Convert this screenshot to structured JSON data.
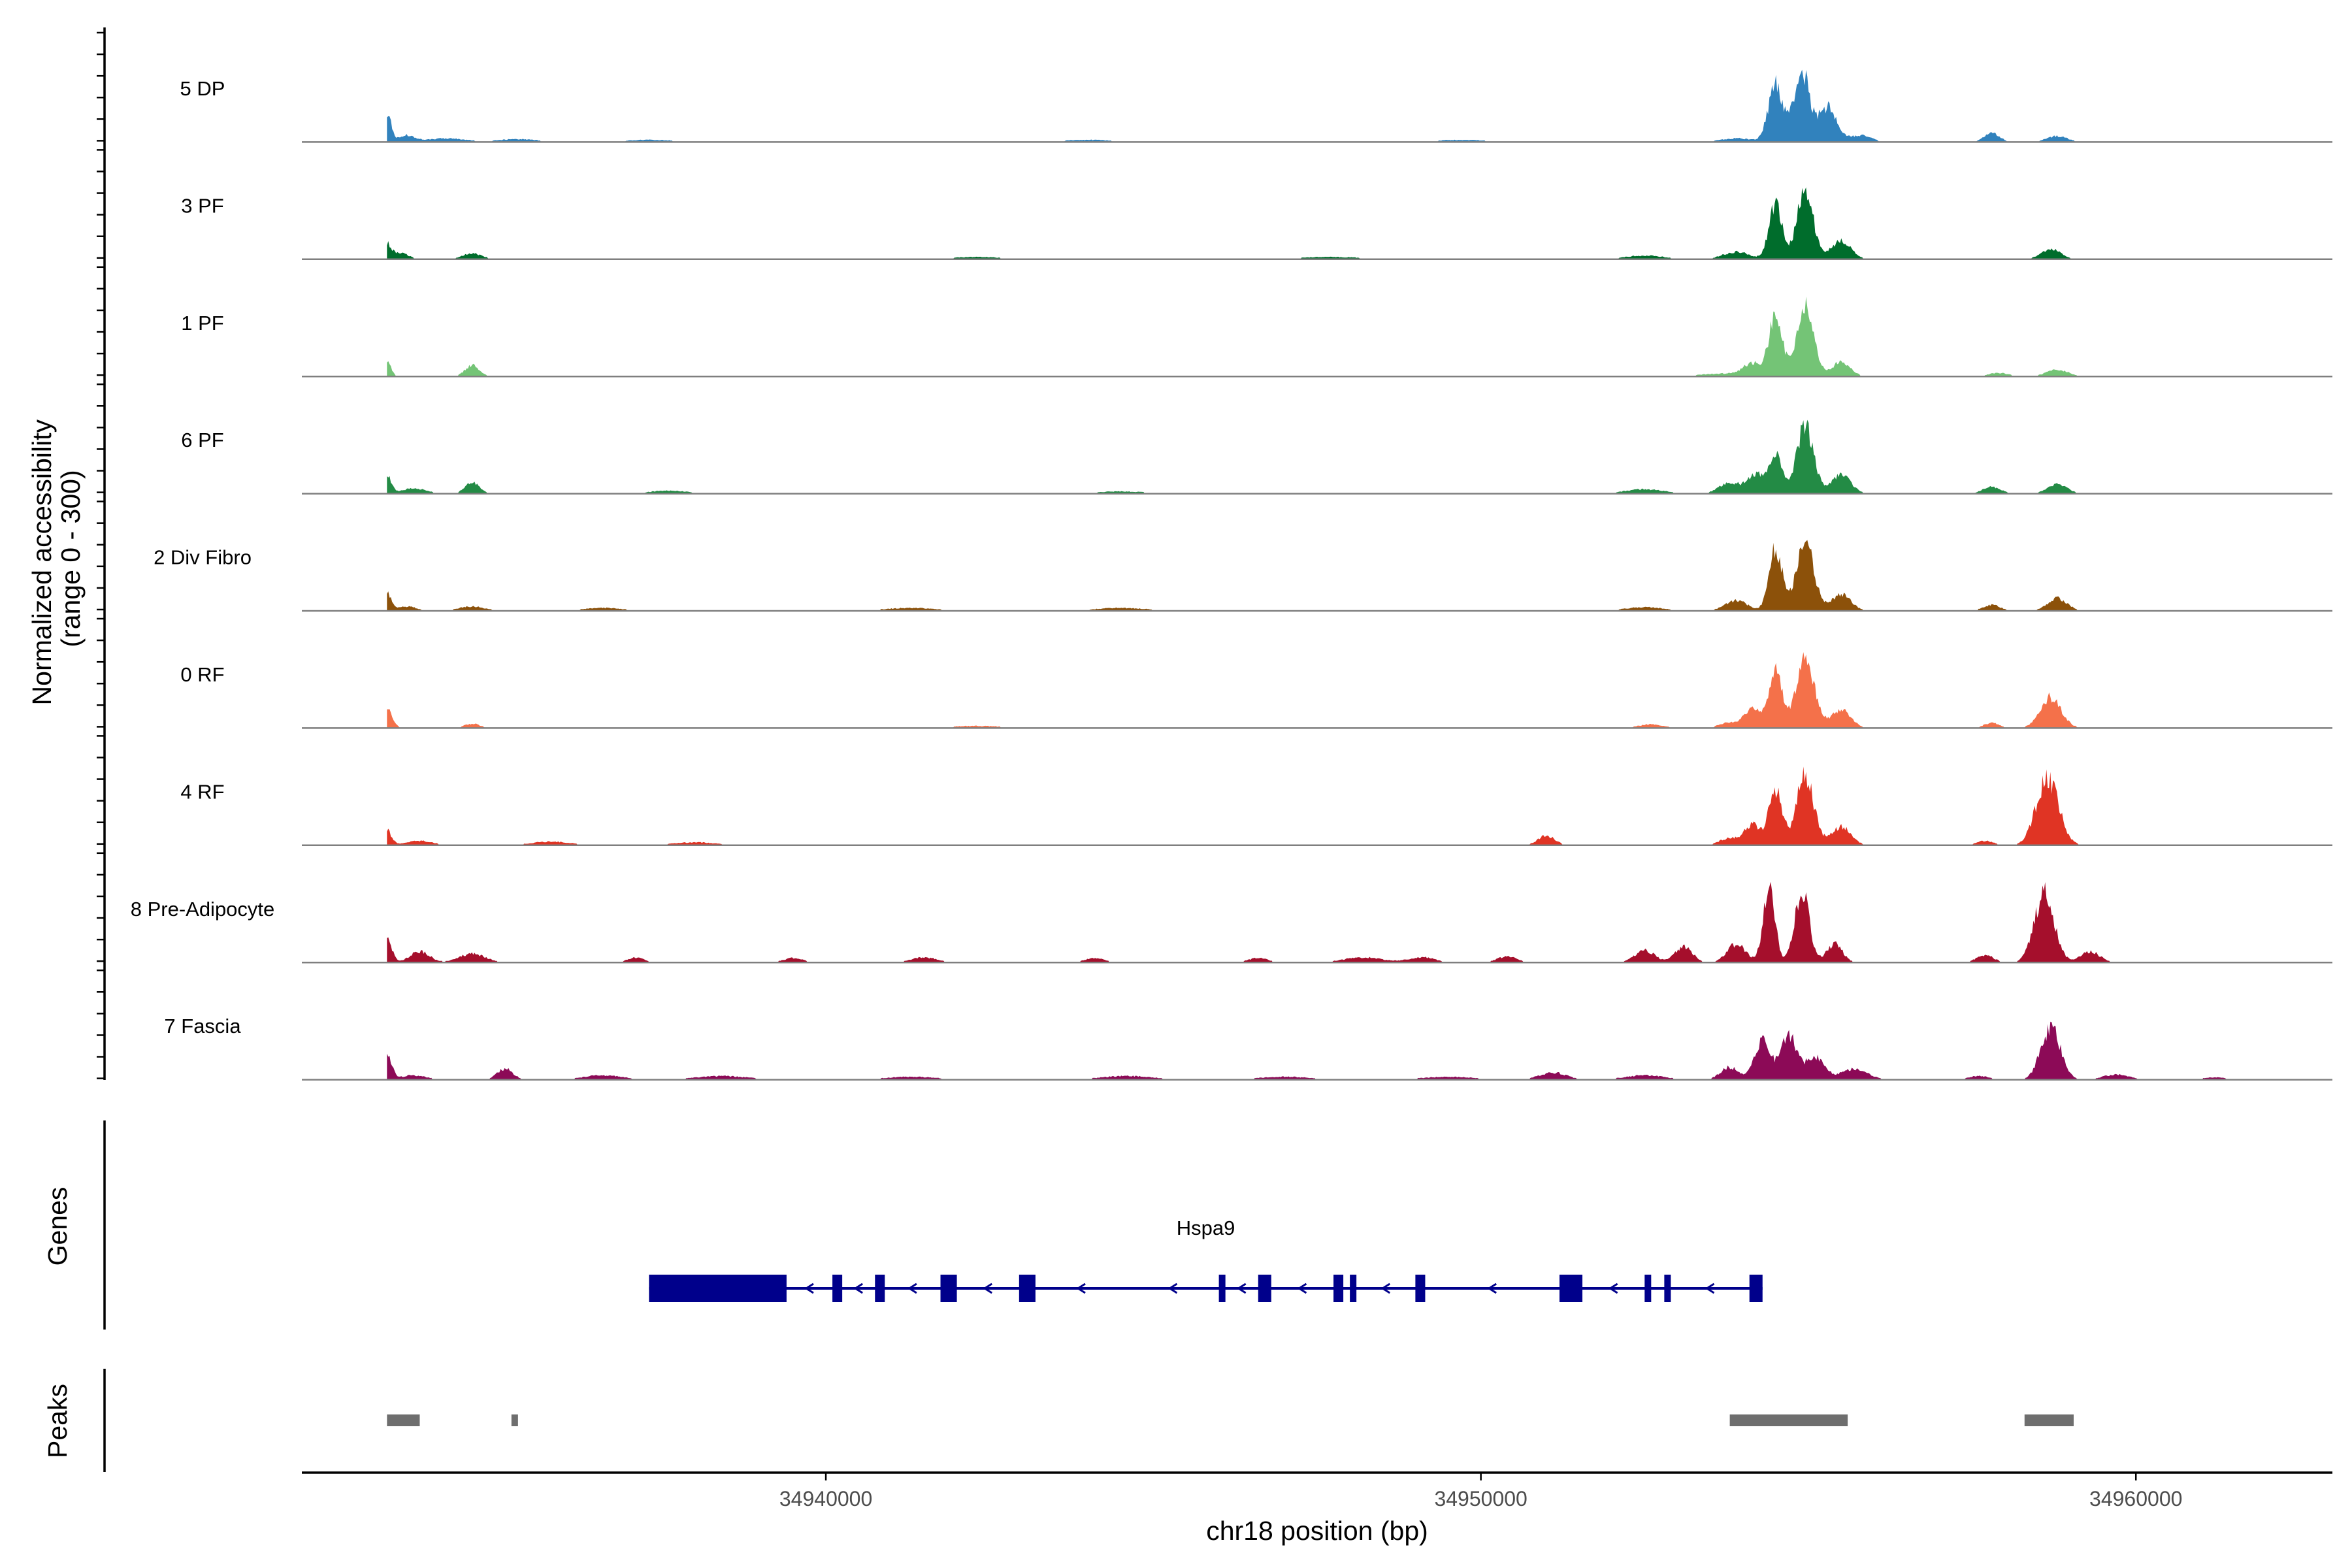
{
  "chart_data": {
    "type": "area",
    "chromosome": "chr18",
    "x_range_bp": [
      34932000,
      34963000
    ],
    "xticks": [
      34940000,
      34950000,
      34960000
    ],
    "xlabel": "chr18 position (bp)",
    "ylabel_line1": "Normalized accessibility",
    "ylabel_line2": "(range 0 - 300)",
    "ylim": [
      0,
      300
    ],
    "series": [
      {
        "name": "5 DP",
        "color": "#3182bd",
        "peaks": [
          [
            34933300,
            0.4,
            60
          ],
          [
            34933600,
            0.09,
            120
          ],
          [
            34934200,
            0.05,
            300
          ],
          [
            34935300,
            0.04,
            300
          ],
          [
            34937300,
            0.03,
            400
          ],
          [
            34944000,
            0.03,
            400
          ],
          [
            34949700,
            0.03,
            400
          ],
          [
            34953900,
            0.05,
            250
          ],
          [
            34954500,
            0.78,
            110
          ],
          [
            34954900,
            0.94,
            120
          ],
          [
            34955300,
            0.47,
            140
          ],
          [
            34955800,
            0.09,
            160
          ],
          [
            34957800,
            0.12,
            120
          ],
          [
            34958800,
            0.08,
            160
          ]
        ]
      },
      {
        "name": "3 PF",
        "color": "#006d2c",
        "peaks": [
          [
            34933300,
            0.2,
            60
          ],
          [
            34933500,
            0.09,
            120
          ],
          [
            34934600,
            0.08,
            150
          ],
          [
            34942300,
            0.03,
            400
          ],
          [
            34947700,
            0.03,
            500
          ],
          [
            34952500,
            0.05,
            300
          ],
          [
            34953900,
            0.1,
            200
          ],
          [
            34954500,
            0.75,
            100
          ],
          [
            34954950,
            0.95,
            120
          ],
          [
            34955500,
            0.25,
            150
          ],
          [
            34958700,
            0.14,
            150
          ]
        ]
      },
      {
        "name": "1 PF",
        "color": "#74c476",
        "peaks": [
          [
            34933300,
            0.22,
            60
          ],
          [
            34934600,
            0.15,
            110
          ],
          [
            34953700,
            0.04,
            350
          ],
          [
            34954150,
            0.17,
            140
          ],
          [
            34954500,
            0.82,
            100
          ],
          [
            34954950,
            0.95,
            130
          ],
          [
            34955500,
            0.2,
            140
          ],
          [
            34957900,
            0.05,
            150
          ],
          [
            34958800,
            0.09,
            170
          ]
        ]
      },
      {
        "name": "6 PF",
        "color": "#238b45",
        "peaks": [
          [
            34933300,
            0.26,
            60
          ],
          [
            34933700,
            0.07,
            200
          ],
          [
            34934600,
            0.15,
            110
          ],
          [
            34937600,
            0.04,
            300
          ],
          [
            34944500,
            0.03,
            400
          ],
          [
            34952500,
            0.06,
            300
          ],
          [
            34953800,
            0.15,
            160
          ],
          [
            34954200,
            0.25,
            130
          ],
          [
            34954500,
            0.55,
            100
          ],
          [
            34954950,
            0.92,
            130
          ],
          [
            34955500,
            0.25,
            150
          ],
          [
            34957800,
            0.09,
            140
          ],
          [
            34958800,
            0.13,
            150
          ]
        ]
      },
      {
        "name": "2 Div Fibro",
        "color": "#8c510a",
        "peaks": [
          [
            34933300,
            0.25,
            60
          ],
          [
            34933600,
            0.06,
            150
          ],
          [
            34934600,
            0.06,
            200
          ],
          [
            34936600,
            0.04,
            300
          ],
          [
            34941300,
            0.04,
            400
          ],
          [
            34944500,
            0.04,
            400
          ],
          [
            34952500,
            0.05,
            300
          ],
          [
            34953900,
            0.14,
            170
          ],
          [
            34954500,
            0.85,
            100
          ],
          [
            34954950,
            0.98,
            130
          ],
          [
            34955500,
            0.22,
            150
          ],
          [
            34957800,
            0.08,
            130
          ],
          [
            34958800,
            0.17,
            150
          ]
        ]
      },
      {
        "name": "0 RF",
        "color": "#f4714a",
        "peaks": [
          [
            34933300,
            0.28,
            80
          ],
          [
            34934600,
            0.06,
            120
          ],
          [
            34942300,
            0.03,
            400
          ],
          [
            34952600,
            0.05,
            200
          ],
          [
            34953800,
            0.08,
            150
          ],
          [
            34954150,
            0.28,
            120
          ],
          [
            34954500,
            0.76,
            100
          ],
          [
            34954950,
            0.94,
            140
          ],
          [
            34955500,
            0.25,
            150
          ],
          [
            34957800,
            0.07,
            120
          ],
          [
            34958700,
            0.42,
            160
          ]
        ]
      },
      {
        "name": "4 RF",
        "color": "#e03424",
        "peaks": [
          [
            34933300,
            0.2,
            70
          ],
          [
            34933800,
            0.06,
            200
          ],
          [
            34935800,
            0.05,
            300
          ],
          [
            34938000,
            0.04,
            350
          ],
          [
            34951000,
            0.13,
            130
          ],
          [
            34953800,
            0.1,
            150
          ],
          [
            34954150,
            0.28,
            120
          ],
          [
            34954500,
            0.78,
            100
          ],
          [
            34954950,
            0.97,
            130
          ],
          [
            34955500,
            0.25,
            150
          ],
          [
            34957700,
            0.06,
            130
          ],
          [
            34958650,
            0.9,
            170
          ]
        ]
      },
      {
        "name": "8 Pre-Adipocyte",
        "color": "#a50f2c",
        "peaks": [
          [
            34933300,
            0.35,
            70
          ],
          [
            34933800,
            0.15,
            150
          ],
          [
            34934600,
            0.12,
            200
          ],
          [
            34937100,
            0.07,
            120
          ],
          [
            34939500,
            0.06,
            150
          ],
          [
            34941500,
            0.07,
            200
          ],
          [
            34944100,
            0.06,
            150
          ],
          [
            34946600,
            0.06,
            150
          ],
          [
            34948200,
            0.07,
            300
          ],
          [
            34949100,
            0.07,
            200
          ],
          [
            34950400,
            0.08,
            150
          ],
          [
            34952500,
            0.17,
            150
          ],
          [
            34953100,
            0.22,
            130
          ],
          [
            34953900,
            0.25,
            140
          ],
          [
            34954400,
            0.99,
            90
          ],
          [
            34954900,
            0.98,
            110
          ],
          [
            34955400,
            0.25,
            120
          ],
          [
            34957700,
            0.1,
            130
          ],
          [
            34958600,
            0.95,
            150
          ],
          [
            34959300,
            0.15,
            150
          ]
        ]
      },
      {
        "name": "7 Fascia",
        "color": "#8c0a57",
        "peaks": [
          [
            34933300,
            0.36,
            70
          ],
          [
            34933700,
            0.06,
            200
          ],
          [
            34935100,
            0.15,
            120
          ],
          [
            34936600,
            0.06,
            300
          ],
          [
            34938400,
            0.05,
            400
          ],
          [
            34941300,
            0.04,
            400
          ],
          [
            34944600,
            0.05,
            400
          ],
          [
            34947000,
            0.04,
            400
          ],
          [
            34949500,
            0.04,
            400
          ],
          [
            34951100,
            0.1,
            200
          ],
          [
            34952500,
            0.06,
            300
          ],
          [
            34953800,
            0.17,
            140
          ],
          [
            34954300,
            0.55,
            120
          ],
          [
            34954700,
            0.6,
            120
          ],
          [
            34955100,
            0.32,
            140
          ],
          [
            34955700,
            0.15,
            200
          ],
          [
            34957600,
            0.05,
            150
          ],
          [
            34958700,
            0.7,
            150
          ],
          [
            34959700,
            0.07,
            200
          ],
          [
            34961200,
            0.03,
            200
          ]
        ]
      }
    ],
    "genes": [
      {
        "name": "Hspa9",
        "strand": "-",
        "color": "#00008b",
        "start": 34937300,
        "end": 34954300,
        "exons": [
          [
            34937300,
            34939400
          ],
          [
            34940100,
            34940250
          ],
          [
            34940750,
            34940900
          ],
          [
            34941750,
            34942000
          ],
          [
            34942950,
            34943200
          ],
          [
            34946000,
            34946100
          ],
          [
            34946600,
            34946800
          ],
          [
            34947750,
            34947900
          ],
          [
            34948000,
            34948100
          ],
          [
            34949000,
            34949150
          ],
          [
            34951200,
            34951550
          ],
          [
            34952500,
            34952600
          ],
          [
            34952800,
            34952900
          ],
          [
            34954100,
            34954300
          ]
        ]
      }
    ],
    "peaks_track": [
      [
        34933300,
        34933800
      ],
      [
        34935200,
        34935300
      ],
      [
        34953800,
        34955600
      ],
      [
        34958300,
        34959050
      ]
    ],
    "track_titles": {
      "genes": "Genes",
      "peaks": "Peaks"
    }
  }
}
